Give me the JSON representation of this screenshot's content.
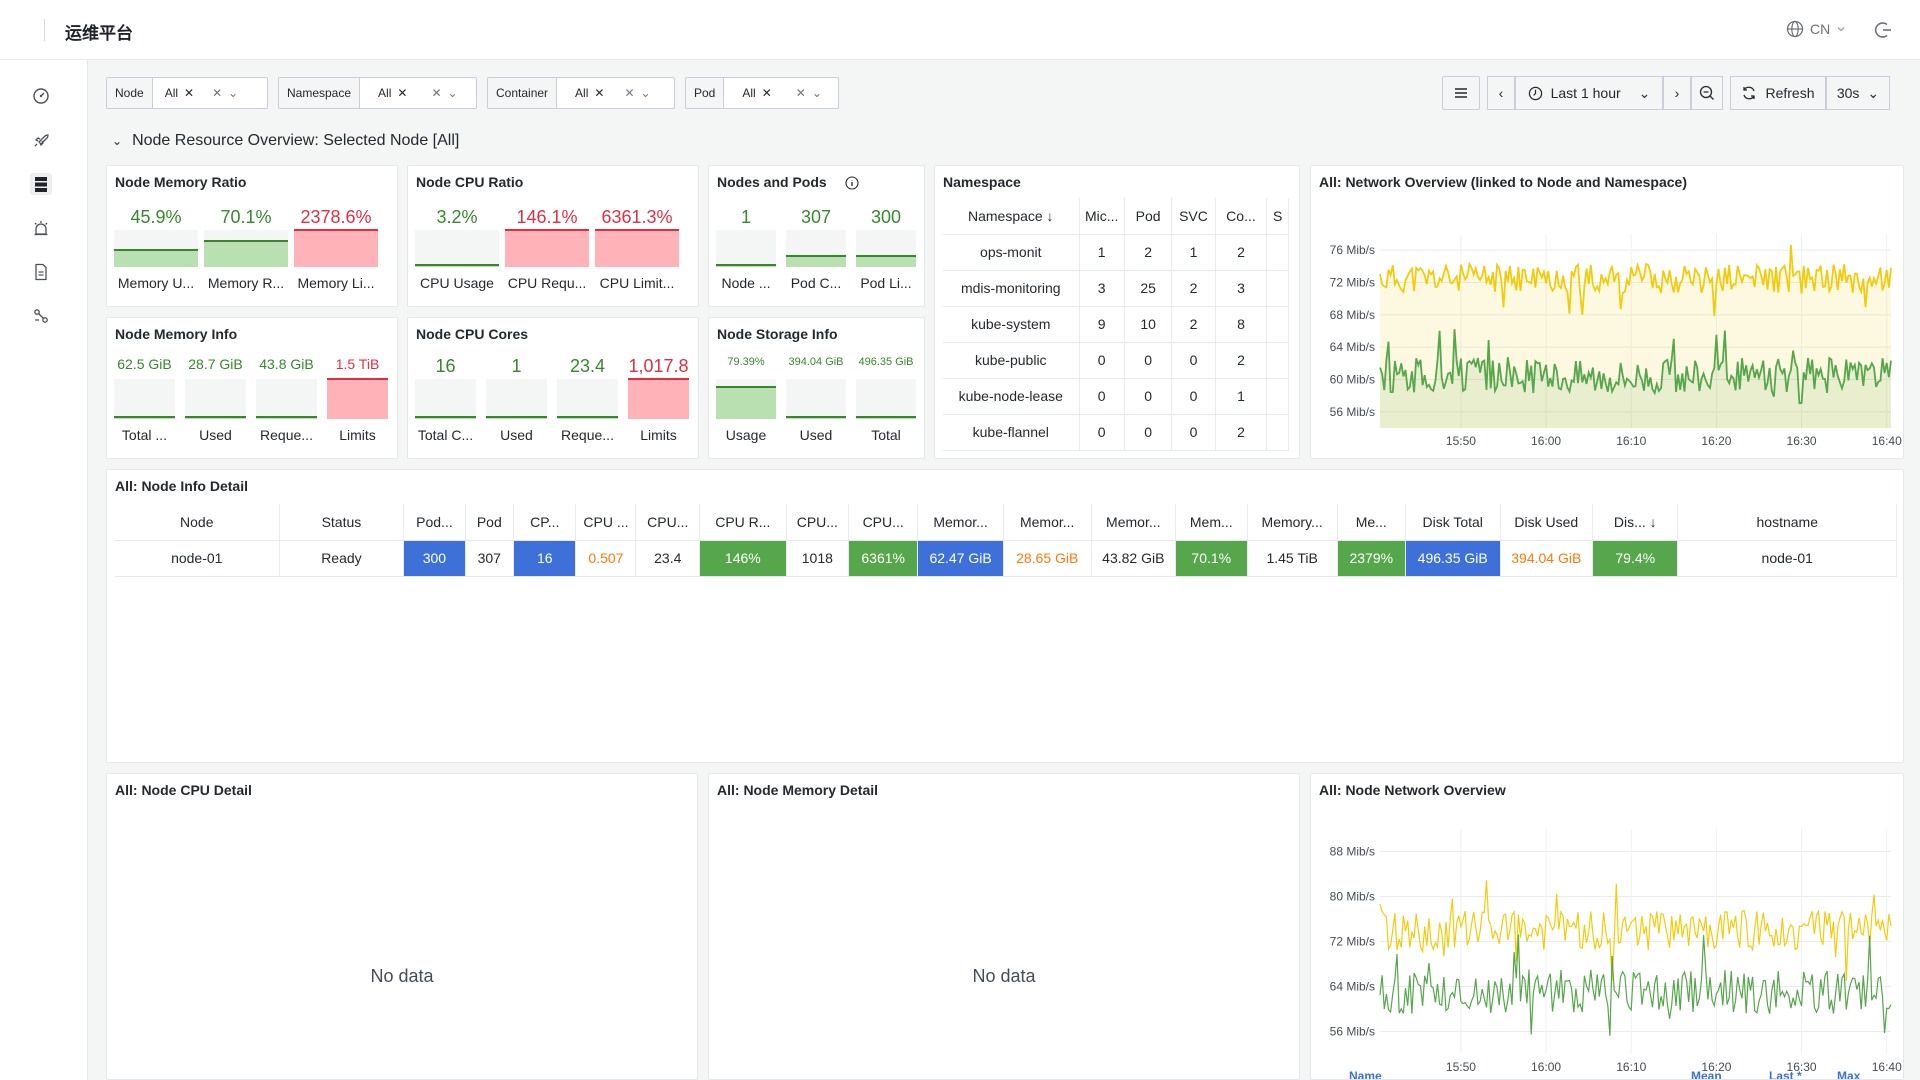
{
  "app": {
    "title": "运维平台",
    "lang": "CN"
  },
  "icons": {
    "dashboard": "dashboard-icon",
    "deploy": "rocket-icon",
    "storage": "database-icon",
    "alert": "alarm-icon",
    "docs": "document-icon",
    "topology": "topology-icon"
  },
  "colors": {
    "green": "#37872d",
    "green_light": "#73bf69",
    "red": "#e02f44",
    "red_light": "#ff9ea9",
    "orange": "#ff780a",
    "blue": "#3871dc",
    "yellow": "#f2cc0c"
  },
  "variables": [
    {
      "label": "Node",
      "value": "All"
    },
    {
      "label": "Namespace",
      "value": "All"
    },
    {
      "label": "Container",
      "value": "All"
    },
    {
      "label": "Pod",
      "value": "All"
    }
  ],
  "timepicker": {
    "range": "Last 1 hour",
    "refresh": "Refresh",
    "interval": "30s"
  },
  "section": {
    "title": "Node Resource Overview: Selected Node [All]"
  },
  "panels": {
    "mem_ratio": {
      "title": "Node Memory Ratio",
      "gauges": [
        {
          "value": "45.9%",
          "label": "Memory U...",
          "level": 0.459,
          "state": "green"
        },
        {
          "value": "70.1%",
          "label": "Memory R...",
          "level": 0.701,
          "state": "green"
        },
        {
          "value": "2378.6%",
          "label": "Memory Li...",
          "level": 1,
          "state": "red"
        }
      ]
    },
    "cpu_ratio": {
      "title": "Node CPU Ratio",
      "gauges": [
        {
          "value": "3.2%",
          "label": "CPU Usage",
          "level": 0.032,
          "state": "green"
        },
        {
          "value": "146.1%",
          "label": "CPU Requ...",
          "level": 1,
          "state": "red"
        },
        {
          "value": "6361.3%",
          "label": "CPU Limit...",
          "level": 1,
          "state": "red"
        }
      ]
    },
    "nodes_pods": {
      "title": "Nodes and Pods",
      "gauges": [
        {
          "value": "1",
          "label": "Node ...",
          "level": 0.03,
          "state": "green"
        },
        {
          "value": "307",
          "label": "Pod C...",
          "level": 0.3,
          "state": "green"
        },
        {
          "value": "300",
          "label": "Pod Li...",
          "level": 0.3,
          "state": "green"
        }
      ]
    },
    "mem_info": {
      "title": "Node Memory Info",
      "gauges": [
        {
          "value": "62.5 GiB",
          "label": "Total ...",
          "level": 0.03,
          "state": "green",
          "unit_small": true
        },
        {
          "value": "28.7 GiB",
          "label": "Used",
          "level": 0.02,
          "state": "green",
          "unit_small": true
        },
        {
          "value": "43.8 GiB",
          "label": "Reque...",
          "level": 0.02,
          "state": "green",
          "unit_small": true
        },
        {
          "value": "1.5 TiB",
          "label": "Limits",
          "level": 1,
          "state": "red",
          "unit_small": true
        }
      ]
    },
    "cpu_cores": {
      "title": "Node CPU Cores",
      "gauges": [
        {
          "value": "16",
          "label": "Total C...",
          "level": 0.03,
          "state": "green"
        },
        {
          "value": "1",
          "label": "Used",
          "level": 0.02,
          "state": "green"
        },
        {
          "value": "23.4",
          "label": "Reque...",
          "level": 0.02,
          "state": "green"
        },
        {
          "value": "1,017.8",
          "label": "Limits",
          "level": 1,
          "state": "red"
        }
      ]
    },
    "storage": {
      "title": "Node Storage Info",
      "gauges": [
        {
          "value": "79.39%",
          "label": "Usage",
          "level": 0.8,
          "state": "green"
        },
        {
          "value": "394.04 GiB",
          "label": "Used",
          "level": 0.03,
          "state": "green"
        },
        {
          "value": "496.35 GiB",
          "label": "Total",
          "level": 0.03,
          "state": "green"
        }
      ]
    },
    "namespace": {
      "title": "Namespace",
      "columns": [
        "Namespace",
        "Mic...",
        "Pod",
        "SVC",
        "Co...",
        "S"
      ],
      "rows": [
        [
          "ops-monit",
          "1",
          "2",
          "1",
          "2",
          ""
        ],
        [
          "mdis-monitoring",
          "3",
          "25",
          "2",
          "3",
          ""
        ],
        [
          "kube-system",
          "9",
          "10",
          "2",
          "8",
          ""
        ],
        [
          "kube-public",
          "0",
          "0",
          "0",
          "2",
          ""
        ],
        [
          "kube-node-lease",
          "0",
          "0",
          "0",
          "1",
          ""
        ],
        [
          "kube-flannel",
          "0",
          "0",
          "0",
          "2",
          ""
        ]
      ]
    },
    "net_overview": {
      "title": "All: Network Overview (linked to Node and Namespace)"
    },
    "node_detail": {
      "title": "All: Node Info Detail",
      "columns": [
        "Node",
        "Status",
        "Pod...",
        "Pod",
        "CP...",
        "CPU ...",
        "CPU...",
        "CPU R...",
        "CPU...",
        "CPU...",
        "Memor...",
        "Memor...",
        "Memor...",
        "Mem...",
        "Memory...",
        "Me...",
        "Disk Total",
        "Disk Used",
        "Dis...",
        "hostname"
      ],
      "row": [
        "node-01",
        "Ready",
        "300",
        "307",
        "16",
        "0.507",
        "23.4",
        "146%",
        "1018",
        "6361%",
        "62.47 GiB",
        "28.65 GiB",
        "43.82 GiB",
        "70.1%",
        "1.45 TiB",
        "2379%",
        "496.35 GiB",
        "394.04 GiB",
        "79.4%",
        "node-01"
      ],
      "cellstyle": [
        "",
        "",
        "blue",
        "",
        "blue",
        "orange",
        "",
        "green",
        "",
        "green",
        "blue",
        "orange",
        "",
        "green",
        "",
        "green",
        "blue",
        "orange",
        "green",
        ""
      ]
    },
    "cpu_detail": {
      "title": "All: Node CPU Detail",
      "empty": "No data"
    },
    "mem_detail": {
      "title": "All: Node Memory Detail",
      "empty": "No data"
    },
    "net_node": {
      "title": "All: Node Network Overview",
      "legend": {
        "name": "Name",
        "mean": "Mean",
        "last": "Last *",
        "max": "Max"
      }
    }
  },
  "chart_data": [
    {
      "type": "line",
      "title": "All: Network Overview (linked to Node and Namespace)",
      "x": [
        "15:50",
        "16:00",
        "16:10",
        "16:20",
        "16:30",
        "16:40"
      ],
      "ylabel": "",
      "yticks": [
        "56 Mib/s",
        "60 Mib/s",
        "64 Mib/s",
        "68 Mib/s",
        "72 Mib/s",
        "76 Mib/s"
      ],
      "ylim": [
        54,
        78
      ],
      "series": [
        {
          "color": "#f2cc0c",
          "mean": 72.5,
          "amp": 1.8
        },
        {
          "color": "#56a64b",
          "mean": 60.5,
          "amp": 2.2
        }
      ],
      "fill": true
    },
    {
      "type": "line",
      "title": "All: Node Network Overview",
      "x": [
        "15:50",
        "16:00",
        "16:10",
        "16:20",
        "16:30",
        "16:40"
      ],
      "ylabel": "",
      "yticks": [
        "56 Mib/s",
        "64 Mib/s",
        "72 Mib/s",
        "80 Mib/s",
        "88 Mib/s"
      ],
      "ylim": [
        52,
        92
      ],
      "series": [
        {
          "color": "#f2cc0c",
          "mean": 74,
          "amp": 3.5
        },
        {
          "color": "#56a64b",
          "mean": 63,
          "amp": 4
        }
      ],
      "fill": false
    }
  ]
}
